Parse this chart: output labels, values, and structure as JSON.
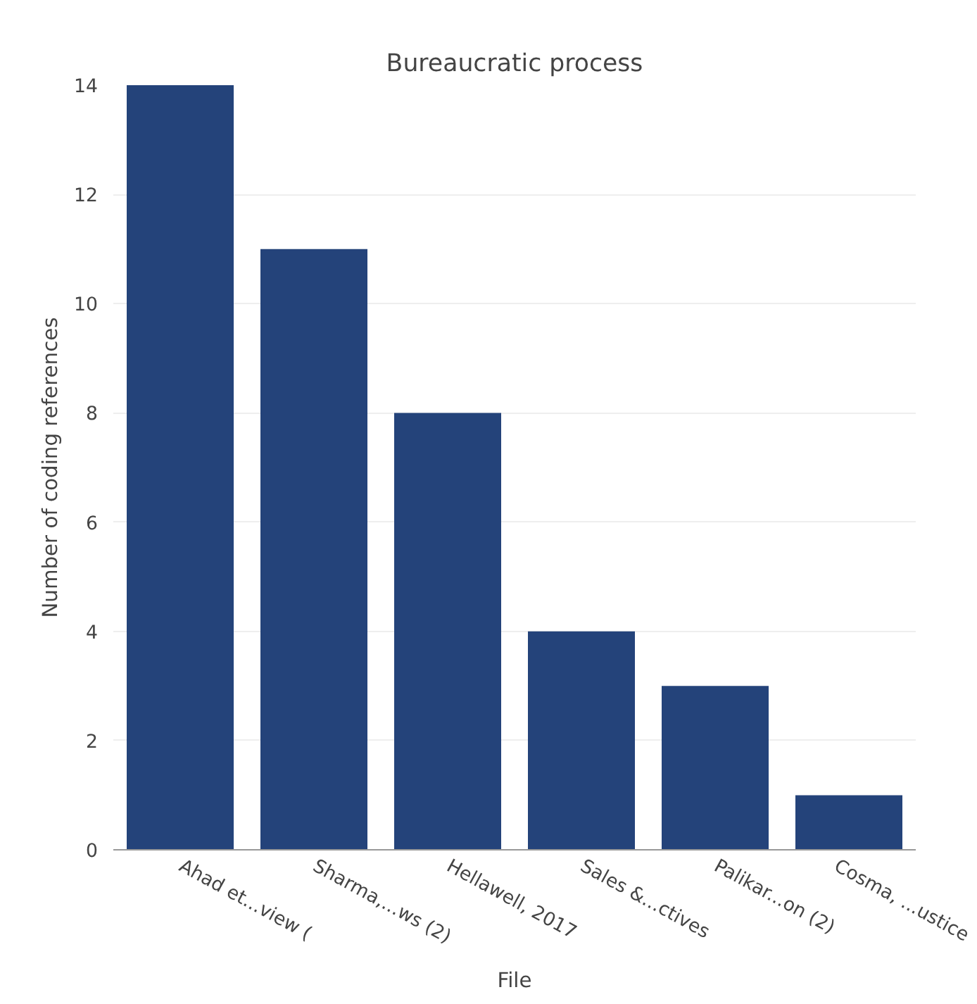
{
  "chart_data": {
    "type": "bar",
    "title": "Bureaucratic process",
    "xlabel": "File",
    "ylabel": "Number of coding references",
    "categories": [
      "Ahad et...view (",
      "Sharma,...ws (2)",
      "Hellawell, 2017",
      "Sales &...ctives",
      "Palikar...on (2)",
      "Cosma, ...ustice"
    ],
    "values": [
      14,
      11,
      8,
      4,
      3,
      1
    ],
    "color": "#24437a",
    "ylim": [
      0,
      14
    ],
    "yticks": [
      0,
      2,
      4,
      6,
      8,
      10,
      12,
      14
    ],
    "grid": "y"
  }
}
